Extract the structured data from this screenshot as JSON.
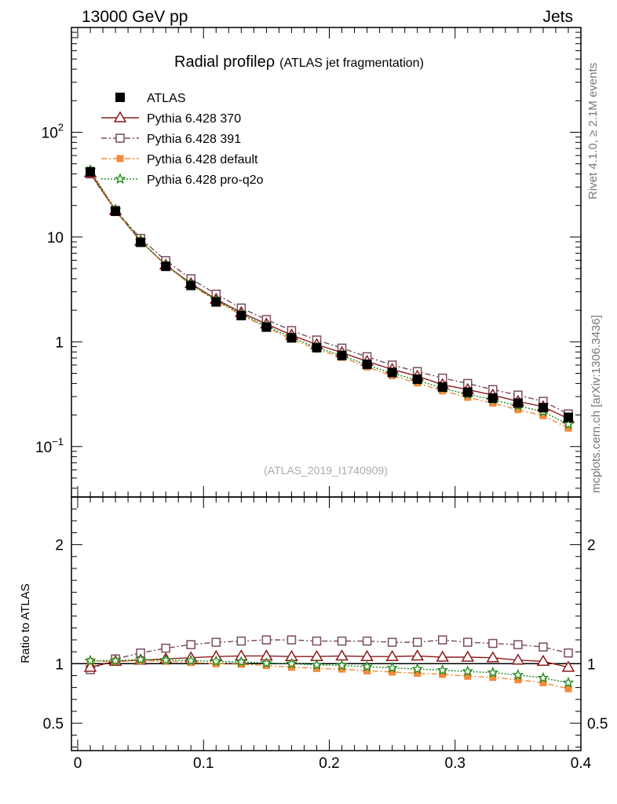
{
  "header": {
    "left": "13000 GeV pp",
    "right": "Jets"
  },
  "title": {
    "main": "Radial profile",
    "rho": "ρ",
    "sub": "(ATLAS jet fragmentation)"
  },
  "watermark": "(ATLAS_2019_I1740909)",
  "side": {
    "rivet": "Rivet 4.1.0, ≥ 2.1M events",
    "source": "mcplots.cern.ch [arXiv:1306.3436]"
  },
  "colors": {
    "atlas": "#000000",
    "p370": "#8b1a1a",
    "p391": "#7a4a5e",
    "pdefault": "#f5893a",
    "pq2o": "#1a8a1a"
  },
  "chart_data": {
    "type": "line",
    "title": "Radial profile ρ (ATLAS jet fragmentation)",
    "xlabel": "",
    "xlim": [
      -0.005,
      0.4
    ],
    "main_yscale": "log",
    "main_ylim": [
      0.033,
      1000
    ],
    "main_yticks": [
      {
        "value": 0.1,
        "label": "10",
        "exp": "−1"
      },
      {
        "value": 1,
        "label": "1",
        "exp": ""
      },
      {
        "value": 10,
        "label": "10",
        "exp": ""
      },
      {
        "value": 100,
        "label": "10",
        "exp": "2"
      }
    ],
    "xticks": [
      {
        "value": 0,
        "label": "0"
      },
      {
        "value": 0.1,
        "label": "0.1"
      },
      {
        "value": 0.2,
        "label": "0.2"
      },
      {
        "value": 0.3,
        "label": "0.3"
      },
      {
        "value": 0.4,
        "label": "0.4"
      }
    ],
    "ratio_ylabel": "Ratio to ATLAS",
    "ratio_ylim": [
      0.27,
      2.4
    ],
    "ratio_yticks": [
      {
        "value": 0.5,
        "label": "0.5"
      },
      {
        "value": 1,
        "label": "1"
      },
      {
        "value": 2,
        "label": "2"
      }
    ],
    "x": [
      0.01,
      0.03,
      0.05,
      0.07,
      0.09,
      0.11,
      0.13,
      0.15,
      0.17,
      0.19,
      0.21,
      0.23,
      0.25,
      0.27,
      0.29,
      0.31,
      0.33,
      0.35,
      0.37,
      0.39
    ],
    "series": [
      {
        "key": "atlas",
        "name": "ATLAS",
        "marker": "filled-square",
        "dash": "none",
        "legend": true,
        "values": [
          42.0,
          17.6,
          8.9,
          5.25,
          3.45,
          2.4,
          1.78,
          1.38,
          1.09,
          0.88,
          0.74,
          0.61,
          0.51,
          0.44,
          0.37,
          0.33,
          0.29,
          0.26,
          0.235,
          0.19
        ]
      },
      {
        "key": "p370",
        "name": "Pythia 6.428 370",
        "marker": "open-triangle",
        "dash": "solid",
        "legend": true,
        "values": [
          41.0,
          17.9,
          9.1,
          5.4,
          3.6,
          2.55,
          1.9,
          1.48,
          1.16,
          0.94,
          0.79,
          0.65,
          0.545,
          0.47,
          0.39,
          0.35,
          0.31,
          0.27,
          0.24,
          0.185
        ],
        "ratio": [
          0.97,
          1.02,
          1.03,
          1.04,
          1.05,
          1.06,
          1.065,
          1.065,
          1.06,
          1.06,
          1.065,
          1.06,
          1.06,
          1.065,
          1.055,
          1.055,
          1.05,
          1.03,
          1.02,
          0.97
        ]
      },
      {
        "key": "p391",
        "name": "Pythia 6.428 391",
        "marker": "open-square",
        "dash": "dashdot",
        "legend": true,
        "values": [
          40.0,
          18.0,
          9.7,
          5.95,
          4.0,
          2.85,
          2.1,
          1.63,
          1.28,
          1.04,
          0.87,
          0.72,
          0.6,
          0.52,
          0.45,
          0.4,
          0.35,
          0.31,
          0.27,
          0.205
        ],
        "ratio": [
          0.95,
          1.04,
          1.09,
          1.13,
          1.16,
          1.18,
          1.19,
          1.2,
          1.2,
          1.19,
          1.19,
          1.19,
          1.18,
          1.18,
          1.2,
          1.18,
          1.17,
          1.16,
          1.14,
          1.09
        ]
      },
      {
        "key": "pdefault",
        "name": "Pythia 6.428 default",
        "marker": "filled-square-small",
        "dash": "dashdot",
        "legend": true,
        "values": [
          43.0,
          18.0,
          9.15,
          5.35,
          3.5,
          2.45,
          1.8,
          1.37,
          1.06,
          0.85,
          0.71,
          0.575,
          0.475,
          0.405,
          0.34,
          0.295,
          0.26,
          0.225,
          0.197,
          0.15
        ],
        "ratio": [
          1.02,
          1.02,
          1.025,
          1.02,
          1.01,
          1.0,
          0.995,
          0.985,
          0.97,
          0.96,
          0.955,
          0.94,
          0.93,
          0.92,
          0.91,
          0.895,
          0.885,
          0.865,
          0.84,
          0.79
        ]
      },
      {
        "key": "pq2o",
        "name": "Pythia 6.428 pro-q2o",
        "marker": "open-star",
        "dash": "dotted",
        "legend": true,
        "values": [
          43.5,
          18.2,
          9.2,
          5.4,
          3.55,
          2.5,
          1.84,
          1.41,
          1.1,
          0.88,
          0.74,
          0.6,
          0.5,
          0.43,
          0.36,
          0.315,
          0.28,
          0.245,
          0.215,
          0.163
        ],
        "ratio": [
          1.025,
          1.025,
          1.035,
          1.03,
          1.025,
          1.02,
          1.015,
          1.005,
          1.0,
          0.99,
          0.985,
          0.975,
          0.965,
          0.955,
          0.945,
          0.935,
          0.925,
          0.905,
          0.88,
          0.84
        ]
      }
    ]
  }
}
